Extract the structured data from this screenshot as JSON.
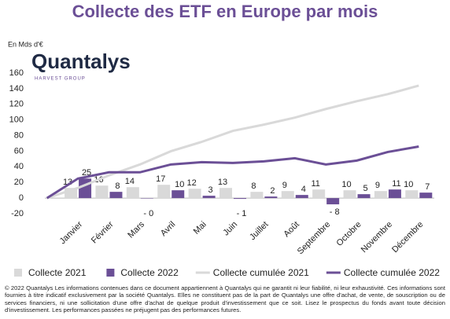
{
  "chart_data": {
    "type": "bar_line",
    "title": "Collecte des ETF en Europe par mois",
    "y_unit_label": "En Mds d'€",
    "logo": {
      "name": "Quantalys",
      "tagline": "HARVEST GROUP"
    },
    "categories": [
      null,
      "Janvier",
      "Février",
      "Mars",
      "Avril",
      "Mai",
      "Juin",
      "Juillet",
      "Août",
      "Septembre",
      "Octobre",
      "Novembre",
      "Décembre"
    ],
    "series": [
      {
        "name": "Collecte 2021",
        "kind": "bar",
        "color": "#d9d9d9",
        "values": [
          null,
          13,
          16,
          14,
          17,
          12,
          13,
          8,
          9,
          11,
          10,
          9,
          10
        ]
      },
      {
        "name": "Collecte 2022",
        "kind": "bar",
        "color": "#6b4f96",
        "values": [
          null,
          25,
          8,
          -0.3,
          10,
          3,
          -1,
          2,
          4,
          -8,
          5,
          11,
          7
        ],
        "value_labels": [
          null,
          "25",
          "8",
          "- 0",
          "10",
          "3",
          "- 1",
          "2",
          "4",
          "- 8",
          "5",
          "11",
          "7"
        ]
      },
      {
        "name": "Collecte cumulée 2021",
        "kind": "line",
        "color": "#d9d9d9",
        "values": [
          0,
          13,
          29,
          43,
          60,
          72,
          86,
          94,
          103,
          114,
          124,
          133,
          144
        ]
      },
      {
        "name": "Collecte cumulée 2022",
        "kind": "line",
        "color": "#6b4f96",
        "values": [
          0,
          25,
          33,
          33,
          43,
          46,
          45,
          47,
          51,
          43,
          48,
          59,
          66
        ]
      }
    ],
    "ylim": [
      -20,
      160
    ],
    "yticks": [
      -20,
      0,
      20,
      40,
      60,
      80,
      100,
      120,
      140,
      160
    ],
    "grid": false,
    "legend": "bottom",
    "footer": "© 2022 Quantalys Les informations contenues dans ce document appartiennent à Quantalys qui ne garantit ni leur fiabilité, ni leur exhaustivité. Ces informations sont fournies à titre indicatif exclusivement par la société Quantalys. Elles ne constituent pas de la part de Quantalys une offre d'achat, de vente, de souscription ou de services financiers, ni une sollicitation d'une offre d'achat de quelque produit d'investissement que ce soit. Lisez le prospectus du fonds avant toute décision d'investissement. Les performances passées ne préjugent pas des performances futures."
  }
}
